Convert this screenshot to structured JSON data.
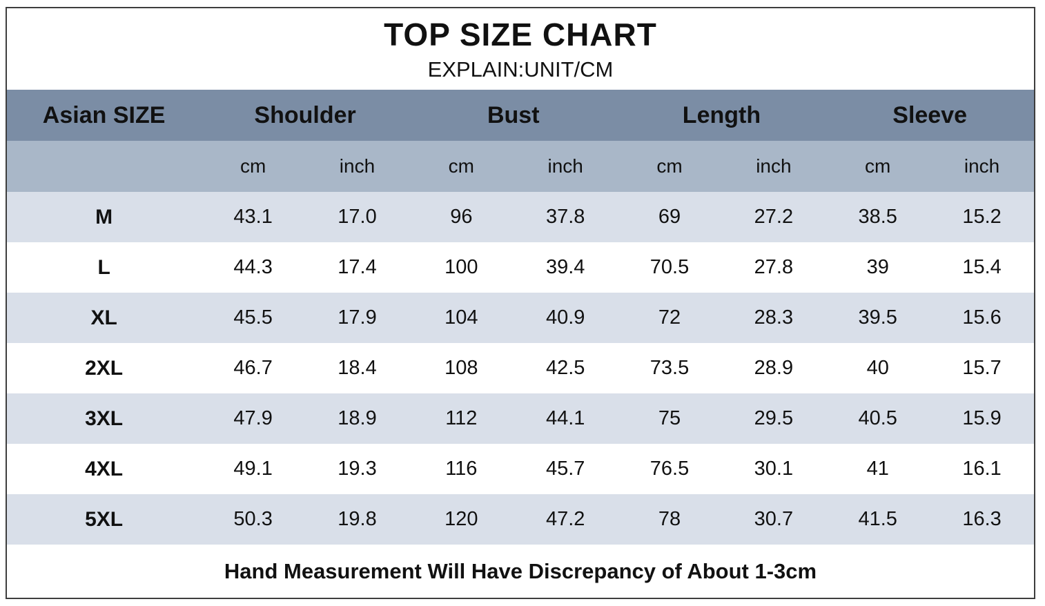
{
  "chart_data": {
    "type": "table",
    "title": "TOP SIZE CHART",
    "subtitle": "EXPLAIN:UNIT/CM",
    "column_groups": [
      "Asian SIZE",
      "Shoulder",
      "Bust",
      "Length",
      "Sleeve"
    ],
    "sub_headers": [
      "cm",
      "inch",
      "cm",
      "inch",
      "cm",
      "inch",
      "cm",
      "inch"
    ],
    "rows": [
      {
        "size": "M",
        "values": [
          "43.1",
          "17.0",
          "96",
          "37.8",
          "69",
          "27.2",
          "38.5",
          "15.2"
        ]
      },
      {
        "size": "L",
        "values": [
          "44.3",
          "17.4",
          "100",
          "39.4",
          "70.5",
          "27.8",
          "39",
          "15.4"
        ]
      },
      {
        "size": "XL",
        "values": [
          "45.5",
          "17.9",
          "104",
          "40.9",
          "72",
          "28.3",
          "39.5",
          "15.6"
        ]
      },
      {
        "size": "2XL",
        "values": [
          "46.7",
          "18.4",
          "108",
          "42.5",
          "73.5",
          "28.9",
          "40",
          "15.7"
        ]
      },
      {
        "size": "3XL",
        "values": [
          "47.9",
          "18.9",
          "112",
          "44.1",
          "75",
          "29.5",
          "40.5",
          "15.9"
        ]
      },
      {
        "size": "4XL",
        "values": [
          "49.1",
          "19.3",
          "116",
          "45.7",
          "76.5",
          "30.1",
          "41",
          "16.1"
        ]
      },
      {
        "size": "5XL",
        "values": [
          "50.3",
          "19.8",
          "120",
          "47.2",
          "78",
          "30.7",
          "41.5",
          "16.3"
        ]
      }
    ],
    "footer": "Hand Measurement Will Have Discrepancy of About 1-3cm",
    "layout": {
      "legend_position": "none",
      "grid": "off",
      "row_striping": "alternating"
    },
    "colors": {
      "header_bg": "#7b8da5",
      "subheader_bg": "#a9b7c8",
      "row_shaded_bg": "#d9dfe9",
      "row_white_bg": "#ffffff",
      "text": "#111111",
      "border": "#3d3d3d"
    }
  }
}
